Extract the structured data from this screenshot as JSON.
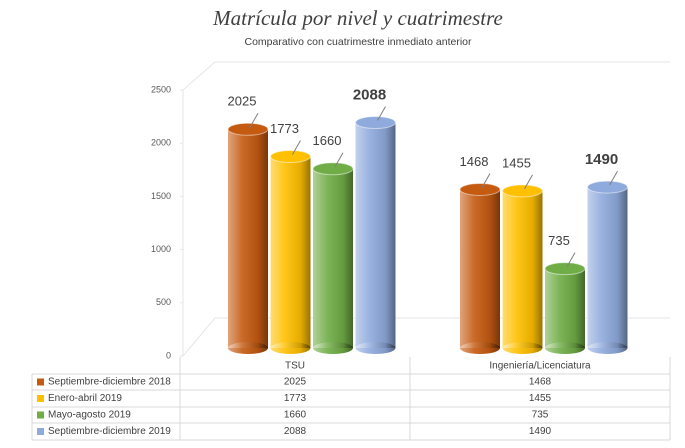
{
  "chart_data": {
    "type": "bar",
    "title": "Matrícula por nivel y cuatrimestre",
    "subtitle": "Comparativo con cuatrimestre inmediato anterior",
    "categories": [
      "TSU",
      "Ingeniería/Licenciatura"
    ],
    "series": [
      {
        "name": "Septiembre-diciembre 2018",
        "color": "#c55a11",
        "values": [
          2025,
          1468
        ]
      },
      {
        "name": "Enero-abril 2019",
        "color": "#ffc000",
        "values": [
          1773,
          1455
        ]
      },
      {
        "name": "Mayo-agosto 2019",
        "color": "#70ad47",
        "values": [
          1660,
          735
        ]
      },
      {
        "name": "Septiembre-diciembre 2019",
        "color": "#8faadc",
        "values": [
          2088,
          1490
        ]
      }
    ],
    "ylim": [
      0,
      2500
    ],
    "yticks": [
      0,
      500,
      1000,
      1500,
      2000,
      2500
    ],
    "grid": false
  }
}
